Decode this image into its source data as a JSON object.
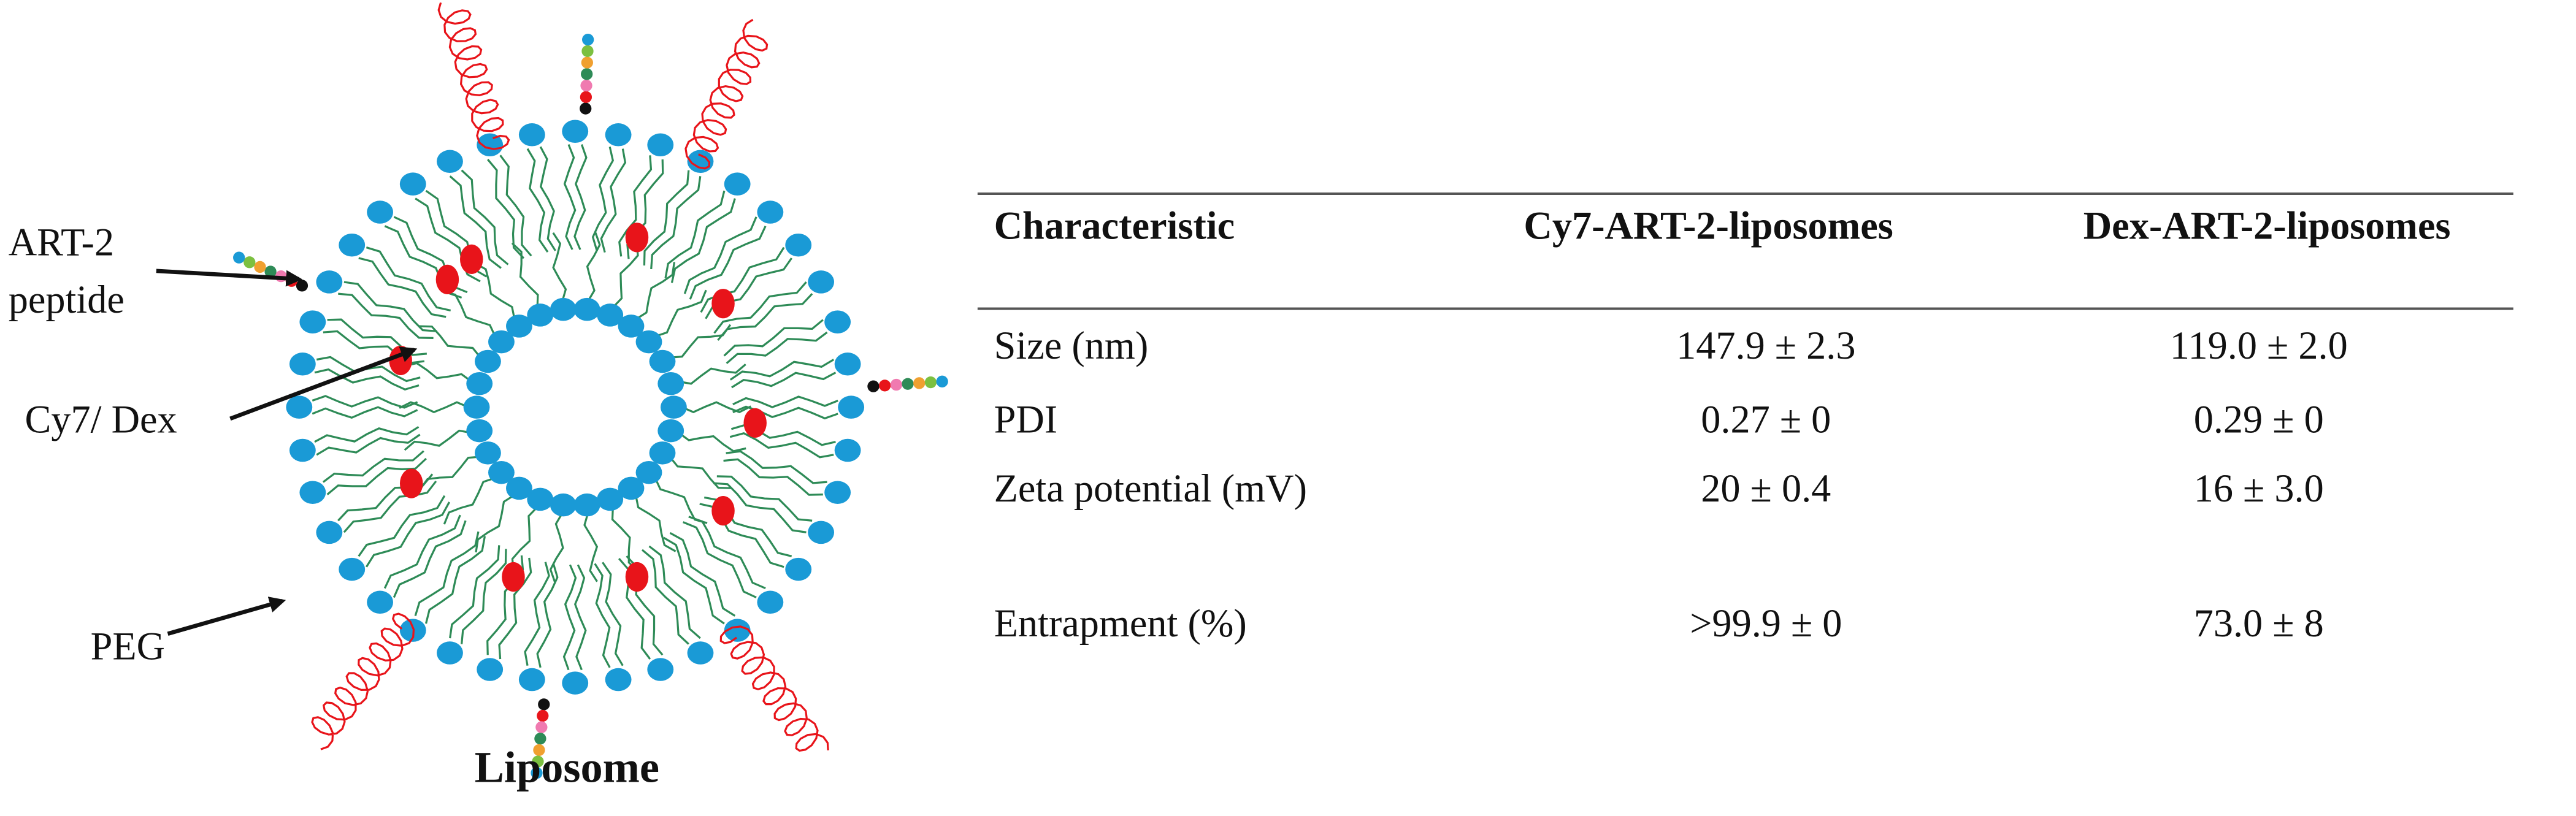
{
  "diagram": {
    "labels": [
      "ART-2",
      "peptide",
      "Cy7/ Dex",
      "PEG"
    ],
    "caption": "Liposome"
  },
  "table": {
    "header": [
      "Characteristic",
      "Cy7-ART-2-liposomes",
      "Dex-ART-2-liposomes"
    ],
    "rows": [
      [
        "Size (nm)",
        "147.9 ± 2.3",
        "119.0 ± 2.0"
      ],
      [
        "PDI",
        "0.27 ± 0",
        "0.29 ± 0"
      ],
      [
        "Zeta potential (mV)",
        "20 ± 0.4",
        "16 ± 3.0"
      ],
      [
        "Entrapment (%)",
        ">99.9 ± 0",
        "73.0 ± 8"
      ]
    ]
  }
}
